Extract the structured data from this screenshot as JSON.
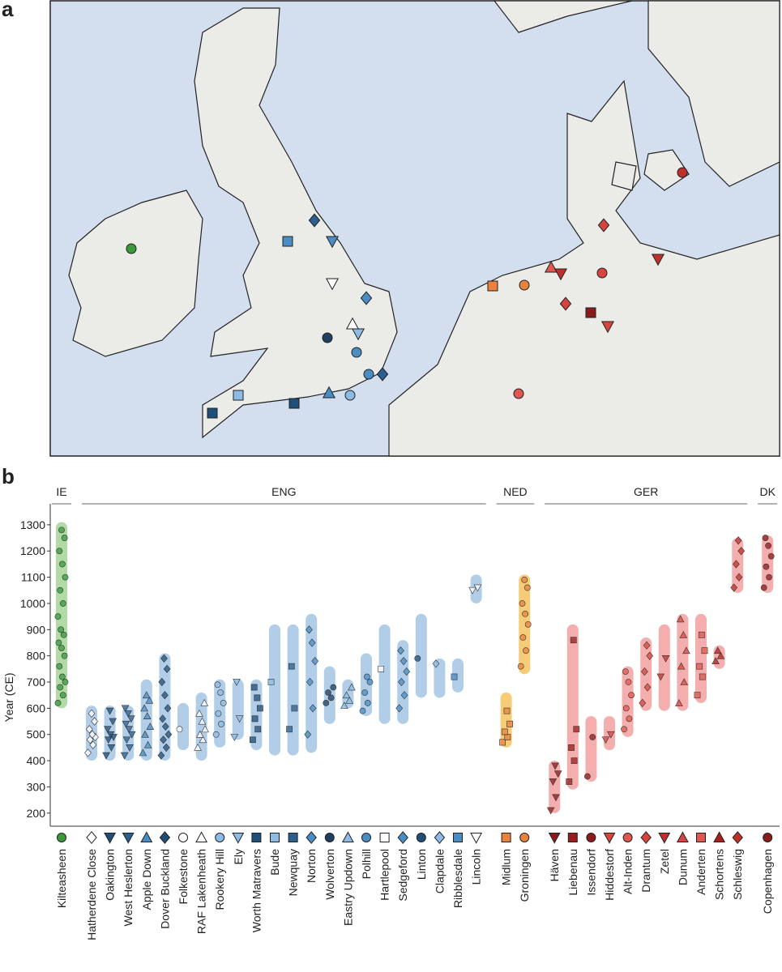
{
  "map": {
    "panel_label": "a"
  },
  "chart_data": {
    "type": "range-strip",
    "panel_label": "b",
    "y_label": "Year (CE)",
    "ylim": [
      150,
      1380
    ],
    "yticks": [
      200,
      300,
      400,
      500,
      600,
      700,
      800,
      900,
      1000,
      1100,
      1200,
      1300
    ],
    "groups": [
      {
        "name": "IE",
        "band_color": "#a9d69c",
        "sites": [
          {
            "name": "Kilteasheen",
            "marker": "circle",
            "color": "#3a9a3a",
            "range": [
              600,
              1310
            ],
            "points": [
              620,
              650,
              680,
              700,
              720,
              760,
              800,
              830,
              850,
              880,
              900,
              950,
              1000,
              1050,
              1100,
              1150,
              1200,
              1250,
              1280
            ]
          }
        ]
      },
      {
        "name": "ENG",
        "band_color": "#a9c8e4",
        "sites": [
          {
            "name": "Hatherdene Close",
            "marker": "diamond",
            "color": "#ffffff",
            "range": [
              400,
              610
            ],
            "points": [
              430,
              460,
              480,
              490,
              500,
              520,
              550,
              580
            ]
          },
          {
            "name": "Oakington",
            "marker": "down",
            "color": "#1f4e79",
            "range": [
              400,
              610
            ],
            "points": [
              420,
              450,
              480,
              490,
              500,
              520,
              550,
              590
            ]
          },
          {
            "name": "West Heslerton",
            "marker": "down",
            "color": "#2b5f8f",
            "range": [
              400,
              610
            ],
            "points": [
              420,
              450,
              480,
              500,
              520,
              540,
              560,
              580,
              600
            ]
          },
          {
            "name": "Apple Down",
            "marker": "up",
            "color": "#4a8cc4",
            "range": [
              400,
              710
            ],
            "points": [
              430,
              460,
              500,
              530,
              570,
              600,
              630,
              650
            ]
          },
          {
            "name": "Dover Buckland",
            "marker": "diamond",
            "color": "#1f4e79",
            "range": [
              400,
              810
            ],
            "points": [
              420,
              450,
              480,
              500,
              530,
              560,
              600,
              650,
              700,
              750,
              790
            ]
          },
          {
            "name": "Folkestone",
            "marker": "circle",
            "color": "#ffffff",
            "range": [
              440,
              620
            ],
            "points": [
              520
            ]
          },
          {
            "name": "RAF Lakenheath",
            "marker": "up",
            "color": "#ffffff",
            "range": [
              400,
              660
            ],
            "points": [
              450,
              480,
              500,
              520,
              550,
              580,
              620
            ]
          },
          {
            "name": "Rookery Hill",
            "marker": "circle",
            "color": "#8dbbe3",
            "range": [
              450,
              710
            ],
            "points": [
              500,
              540,
              580,
              620,
              660,
              690
            ]
          },
          {
            "name": "Ely",
            "marker": "down",
            "color": "#8dbbe3",
            "range": [
              480,
              710
            ],
            "points": [
              490,
              560,
              700
            ]
          },
          {
            "name": "Worth Matravers",
            "marker": "square",
            "color": "#1f4e79",
            "range": [
              440,
              710
            ],
            "points": [
              480,
              520,
              560,
              600,
              640,
              680
            ]
          },
          {
            "name": "Bude",
            "marker": "square",
            "color": "#8dbbe3",
            "range": [
              420,
              920
            ],
            "points": [
              700
            ]
          },
          {
            "name": "Newquay",
            "marker": "square",
            "color": "#2b5f8f",
            "range": [
              420,
              920
            ],
            "points": [
              520,
              600,
              760
            ]
          },
          {
            "name": "Norton",
            "marker": "diamond",
            "color": "#4a8cc4",
            "range": [
              430,
              960
            ],
            "points": [
              500,
              600,
              700,
              780,
              850,
              900
            ]
          },
          {
            "name": "Wolverton",
            "marker": "circle",
            "color": "#1f3f60",
            "range": [
              540,
              760
            ],
            "points": [
              620,
              640,
              660,
              680
            ]
          },
          {
            "name": "Eastry Updown",
            "marker": "up",
            "color": "#8dbbe3",
            "range": [
              600,
              710
            ],
            "points": [
              610,
              630,
              650,
              680
            ]
          },
          {
            "name": "Polhill",
            "marker": "circle",
            "color": "#4a8cc4",
            "range": [
              570,
              810
            ],
            "points": [
              590,
              620,
              660,
              700,
              720
            ]
          },
          {
            "name": "Hartlepool",
            "marker": "square",
            "color": "#ffffff",
            "range": [
              540,
              920
            ],
            "points": [
              750
            ]
          },
          {
            "name": "Sedgeford",
            "marker": "diamond",
            "color": "#4a8cc4",
            "range": [
              540,
              860
            ],
            "points": [
              600,
              650,
              700,
              740,
              780,
              820
            ]
          },
          {
            "name": "Linton",
            "marker": "circle",
            "color": "#1f4e79",
            "range": [
              640,
              960
            ],
            "points": [
              790
            ]
          },
          {
            "name": "Clapdale",
            "marker": "diamond",
            "color": "#8dbbe3",
            "range": [
              640,
              790
            ],
            "points": [
              770
            ]
          },
          {
            "name": "Ribblesdale",
            "marker": "square",
            "color": "#4a8cc4",
            "range": [
              660,
              790
            ],
            "points": [
              720
            ]
          },
          {
            "name": "Lincoln",
            "marker": "down",
            "color": "#ffffff",
            "range": [
              1000,
              1110
            ],
            "points": [
              1050,
              1060
            ]
          }
        ]
      },
      {
        "name": "NED",
        "band_color": "#f6c76a",
        "sites": [
          {
            "name": "Midlum",
            "marker": "square",
            "color": "#e8823e",
            "range": [
              450,
              660
            ],
            "points": [
              470,
              490,
              510,
              540,
              590
            ]
          },
          {
            "name": "Groningen",
            "marker": "circle",
            "color": "#e8823e",
            "range": [
              730,
              1110
            ],
            "points": [
              760,
              820,
              870,
              920,
              960,
              1000,
              1060,
              1090
            ]
          }
        ]
      },
      {
        "name": "GER",
        "band_color": "#f4a5a5",
        "sites": [
          {
            "name": "Häven",
            "marker": "down",
            "color": "#8b1a1a",
            "range": [
              200,
              400
            ],
            "points": [
              210,
              260,
              320,
              350,
              380
            ]
          },
          {
            "name": "Liebenau",
            "marker": "square",
            "color": "#9b1c1c",
            "range": [
              290,
              920
            ],
            "points": [
              320,
              400,
              450,
              520,
              860
            ]
          },
          {
            "name": "Issendorf",
            "marker": "circle",
            "color": "#8b1a1a",
            "range": [
              320,
              570
            ],
            "points": [
              340,
              490
            ]
          },
          {
            "name": "Hiddestorf",
            "marker": "down",
            "color": "#d6453d",
            "range": [
              440,
              570
            ],
            "points": [
              480,
              500
            ]
          },
          {
            "name": "Alt-Inden",
            "marker": "circle",
            "color": "#e0574f",
            "range": [
              490,
              760
            ],
            "points": [
              520,
              560,
              600,
              650,
              700,
              740
            ]
          },
          {
            "name": "Drantum",
            "marker": "diamond",
            "color": "#d6453d",
            "range": [
              590,
              870
            ],
            "points": [
              620,
              680,
              740,
              800,
              840
            ]
          },
          {
            "name": "Zetel",
            "marker": "down",
            "color": "#c0302a",
            "range": [
              590,
              920
            ],
            "points": [
              720,
              790
            ]
          },
          {
            "name": "Dunum",
            "marker": "up",
            "color": "#d6453d",
            "range": [
              590,
              960
            ],
            "points": [
              620,
              700,
              760,
              820,
              880,
              940
            ]
          },
          {
            "name": "Anderten",
            "marker": "square",
            "color": "#e0574f",
            "range": [
              620,
              960
            ],
            "points": [
              650,
              720,
              760,
              820,
              880
            ]
          },
          {
            "name": "Schortens",
            "marker": "up",
            "color": "#a82020",
            "range": [
              750,
              840
            ],
            "points": [
              780,
              800,
              820
            ]
          },
          {
            "name": "Schleswig",
            "marker": "diamond",
            "color": "#c0302a",
            "range": [
              1040,
              1250
            ],
            "points": [
              1060,
              1100,
              1150,
              1200,
              1240
            ]
          }
        ]
      },
      {
        "name": "DK",
        "band_color": "#f4a5a5",
        "sites": [
          {
            "name": "Copenhagen",
            "marker": "circle",
            "color": "#8b1a1a",
            "range": [
              1040,
              1260
            ],
            "points": [
              1060,
              1100,
              1140,
              1180,
              1220,
              1250
            ]
          }
        ]
      }
    ]
  }
}
